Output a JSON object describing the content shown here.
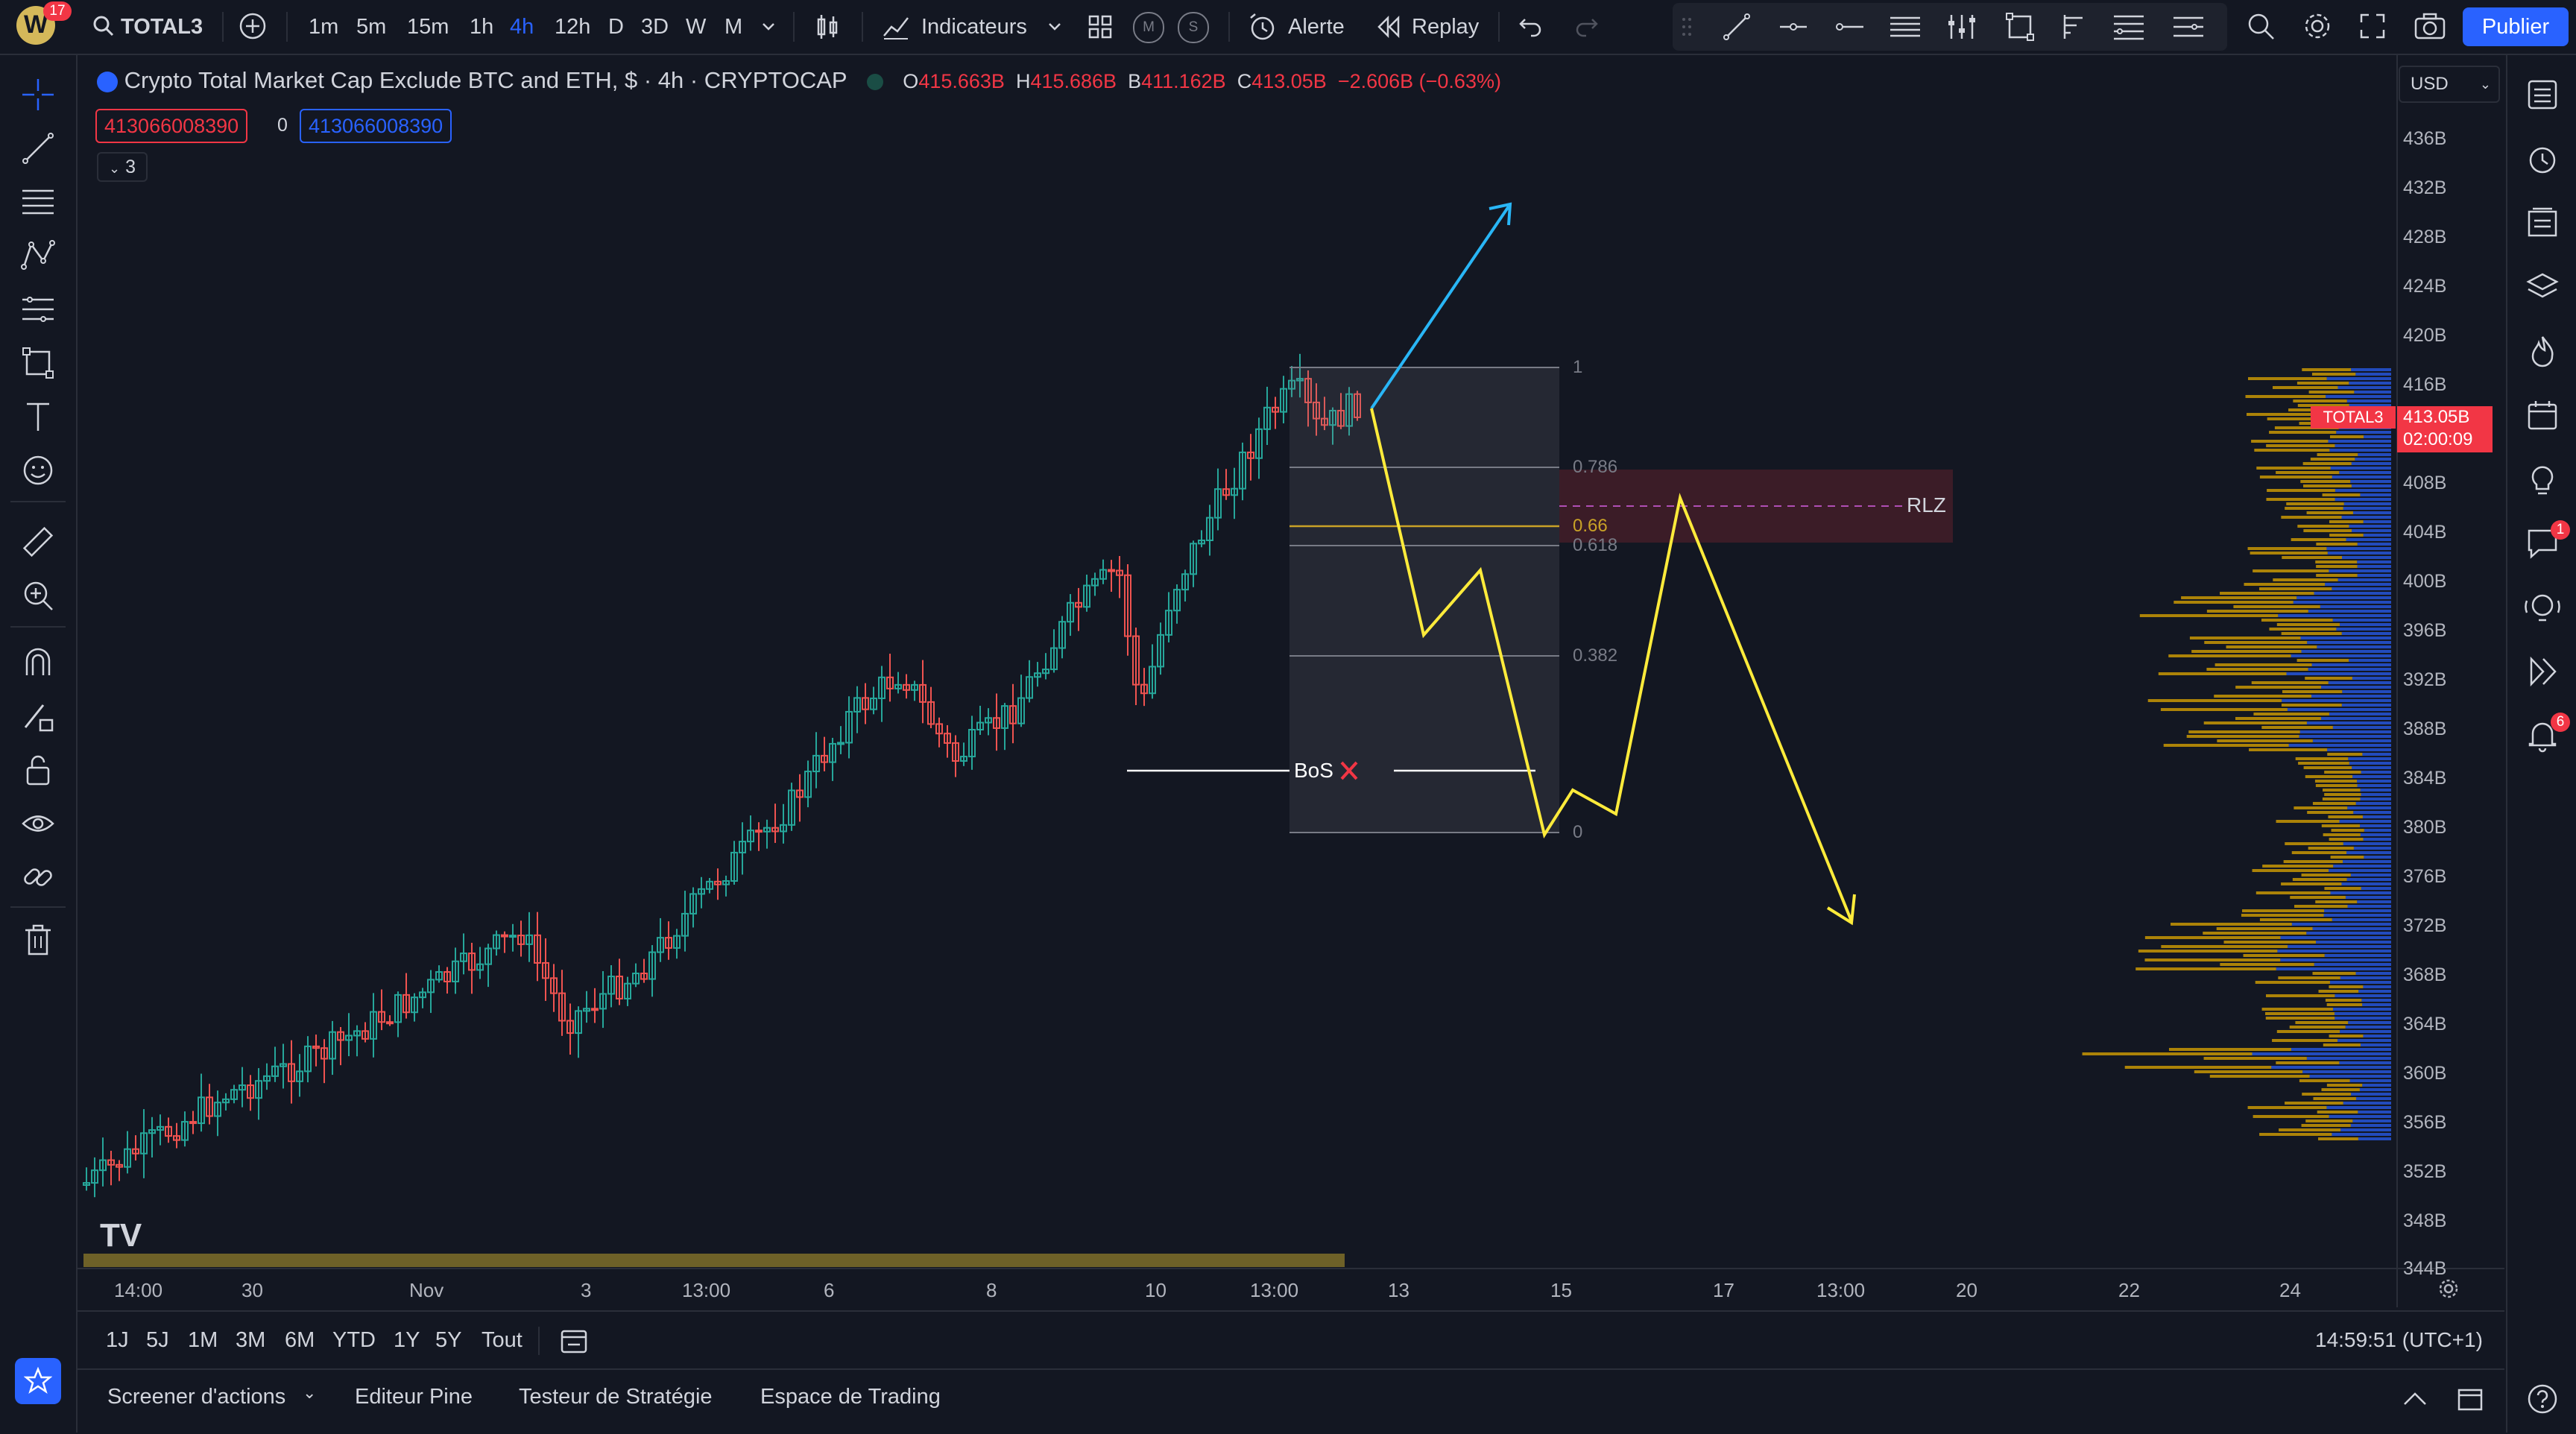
{
  "toolbar": {
    "logo_badge": "17",
    "symbol": "TOTAL3",
    "timeframes": [
      "1m",
      "5m",
      "15m",
      "1h",
      "4h",
      "12h",
      "D",
      "3D",
      "W",
      "M"
    ],
    "active_timeframe": "4h",
    "indicators_label": "Indicateurs",
    "alert_label": "Alerte",
    "replay_label": "Replay",
    "publish_label": "Publier",
    "m_label": "M",
    "s_label": "S"
  },
  "legend": {
    "title": "Crypto Total Market Cap Exclude BTC and ETH, $ · 4h · CRYPTOCAP",
    "o_label": "O",
    "o_value": "415.663B",
    "h_label": "H",
    "h_value": "415.686B",
    "b_label": "B",
    "b_value": "411.162B",
    "c_label": "C",
    "c_value": "413.05B",
    "change": "−2.606B (−0.63%)",
    "sell_price": "413066008390",
    "spread": "0",
    "buy_price": "413066008390",
    "collapse_count": "3"
  },
  "price_axis": {
    "currency": "USD",
    "ticks": [
      "436B",
      "432B",
      "428B",
      "424B",
      "420B",
      "416B",
      "408B",
      "404B",
      "400B",
      "396B",
      "392B",
      "388B",
      "384B",
      "380B",
      "376B",
      "372B",
      "368B",
      "364B",
      "360B",
      "356B",
      "352B",
      "348B",
      "344B"
    ],
    "symbol_badge": "TOTAL3",
    "last_price": "413.05B",
    "countdown": "02:00:09"
  },
  "time_axis": {
    "ticks": [
      "14:00",
      "30",
      "Nov",
      "3",
      "13:00",
      "6",
      "8",
      "10",
      "13:00",
      "13",
      "15",
      "17",
      "13:00",
      "20",
      "22",
      "24"
    ]
  },
  "drawings": {
    "fib_levels": [
      "1",
      "0.786",
      "0.66",
      "0.618",
      "0.382",
      "0"
    ],
    "bos_label": "BoS",
    "rlz_label": "RLZ"
  },
  "ranges": [
    "1J",
    "5J",
    "1M",
    "3M",
    "6M",
    "YTD",
    "1Y",
    "5Y",
    "Tout"
  ],
  "clock": "14:59:51 (UTC+1)",
  "bottom_tabs": [
    "Screener d'actions",
    "Editeur Pine",
    "Testeur de Stratégie",
    "Espace de Trading"
  ],
  "right_badges": {
    "chat": "1",
    "alerts": "6"
  },
  "colors": {
    "up": "#26a69a",
    "down": "#ef5350",
    "accent": "#2962ff",
    "fib_yellow": "#ffeb3b",
    "arrow_blue": "#29b6f6"
  }
}
